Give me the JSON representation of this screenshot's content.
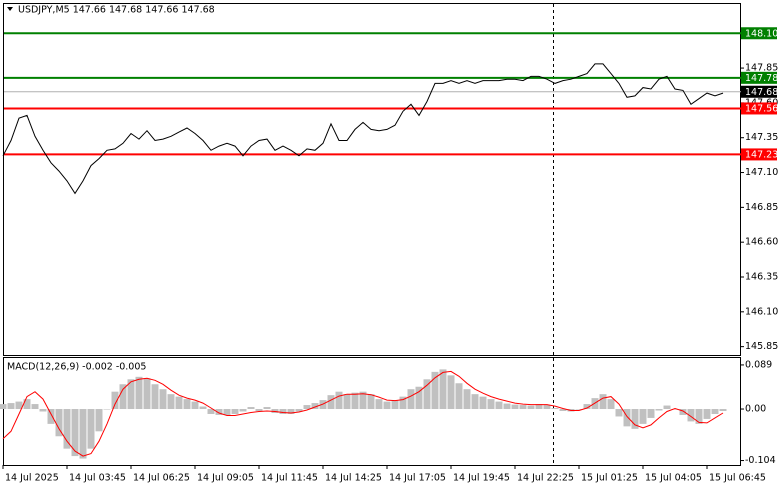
{
  "chart_data": [
    {
      "type": "line",
      "title": "USDJPY,M5  147.66 147.68 147.66 147.68",
      "categories": [
        "14 Jul 2025",
        null,
        null,
        null,
        null,
        null,
        null,
        null,
        "14 Jul 03:45",
        null,
        null,
        null,
        null,
        null,
        null,
        null,
        "14 Jul 06:25",
        null,
        null,
        null,
        null,
        null,
        null,
        null,
        "14 Jul 09:05",
        null,
        null,
        null,
        null,
        null,
        null,
        null,
        "14 Jul 11:45",
        null,
        null,
        null,
        null,
        null,
        null,
        null,
        "14 Jul 14:25",
        null,
        null,
        null,
        null,
        null,
        null,
        null,
        "14 Jul 17:05",
        null,
        null,
        null,
        null,
        null,
        null,
        null,
        "14 Jul 19:45",
        null,
        null,
        null,
        null,
        null,
        null,
        null,
        "14 Jul 22:25",
        null,
        null,
        null,
        null,
        null,
        null,
        null,
        "15 Jul 01:25",
        null,
        null,
        null,
        null,
        null,
        null,
        null,
        "15 Jul 04:05",
        null,
        null,
        null,
        null,
        null,
        null,
        null,
        "15 Jul 06:45",
        null,
        null
      ],
      "series": [
        {
          "color": "#000000",
          "values": [
            147.22,
            147.33,
            147.49,
            147.51,
            147.36,
            147.26,
            147.17,
            147.11,
            147.04,
            146.95,
            147.04,
            147.15,
            147.2,
            147.26,
            147.27,
            147.31,
            147.38,
            147.34,
            147.4,
            147.33,
            147.34,
            147.36,
            147.39,
            147.42,
            147.38,
            147.33,
            147.26,
            147.29,
            147.31,
            147.29,
            147.22,
            147.29,
            147.33,
            147.34,
            147.26,
            147.29,
            147.26,
            147.22,
            147.27,
            147.26,
            147.31,
            147.45,
            147.33,
            147.33,
            147.41,
            147.46,
            147.41,
            147.4,
            147.41,
            147.44,
            147.54,
            147.59,
            147.51,
            147.61,
            147.74,
            147.74,
            147.76,
            147.74,
            147.76,
            147.74,
            147.76,
            147.76,
            147.76,
            147.77,
            147.77,
            147.76,
            147.79,
            147.79,
            147.77,
            147.74,
            147.76,
            147.77,
            147.79,
            147.81,
            147.88,
            147.88,
            147.81,
            147.74,
            147.64,
            147.65,
            147.71,
            147.7,
            147.77,
            147.79,
            147.7,
            147.69,
            147.59,
            147.63,
            147.67,
            147.65,
            147.67
          ]
        }
      ],
      "ylim": [
        145.79,
        148.31
      ],
      "yticks": [
        145.85,
        {
          "value": 146.1,
          "label": "146.10"
        },
        146.35,
        {
          "value": 146.6,
          "label": "146.60"
        },
        146.85,
        {
          "value": 147.1,
          "label": "147.10"
        },
        147.35,
        {
          "value": 147.6,
          "label": "147.60"
        },
        147.85
      ],
      "levels": [
        {
          "value": 148.1,
          "label": "148.10",
          "color": "#008000"
        },
        {
          "value": 147.78,
          "label": "147.78",
          "color": "#008000"
        },
        {
          "value": 147.56,
          "label": "147.56",
          "color": "#ff0000"
        },
        {
          "value": 147.23,
          "label": "147.23",
          "color": "#ff0000"
        }
      ],
      "last": {
        "value": 147.68,
        "label": "147.68"
      }
    },
    {
      "type": "macd",
      "title": "MACD(12,26,9) -0.002 -0.005",
      "series": [
        {
          "type": "bar",
          "color": "#c0c0c0",
          "values": [
            0.01,
            0.012,
            0.015,
            0.02,
            0.01,
            -0.005,
            -0.03,
            -0.055,
            -0.08,
            -0.095,
            -0.1,
            -0.08,
            -0.045,
            0.0,
            0.035,
            0.05,
            0.06,
            0.065,
            0.062,
            0.05,
            0.04,
            0.03,
            0.025,
            0.02,
            0.015,
            0.005,
            -0.01,
            -0.012,
            -0.012,
            -0.01,
            -0.005,
            0.004,
            -0.004,
            0.004,
            -0.008,
            -0.01,
            -0.01,
            -0.005,
            0.008,
            0.012,
            0.018,
            0.028,
            0.035,
            0.03,
            0.033,
            0.035,
            0.03,
            0.02,
            0.015,
            0.018,
            0.025,
            0.04,
            0.045,
            0.06,
            0.075,
            0.08,
            0.068,
            0.052,
            0.04,
            0.03,
            0.025,
            0.02,
            0.015,
            0.011,
            0.009,
            0.008,
            0.007,
            0.01,
            0.008,
            0.002,
            -0.004,
            -0.005,
            0.0,
            0.01,
            0.022,
            0.03,
            0.02,
            -0.015,
            -0.035,
            -0.04,
            -0.03,
            -0.018,
            -0.003,
            0.007,
            0.0,
            -0.012,
            -0.025,
            -0.03,
            -0.02,
            -0.01,
            -0.004
          ]
        },
        {
          "type": "line",
          "color": "#ff0000",
          "values": [
            -0.06,
            -0.045,
            -0.01,
            0.025,
            0.035,
            0.02,
            -0.01,
            -0.04,
            -0.065,
            -0.085,
            -0.095,
            -0.09,
            -0.065,
            -0.03,
            0.01,
            0.04,
            0.055,
            0.06,
            0.062,
            0.058,
            0.05,
            0.038,
            0.028,
            0.022,
            0.018,
            0.012,
            0.002,
            -0.008,
            -0.013,
            -0.013,
            -0.01,
            -0.007,
            -0.005,
            -0.004,
            -0.005,
            -0.007,
            -0.008,
            -0.006,
            -0.002,
            0.004,
            0.01,
            0.018,
            0.026,
            0.03,
            0.03,
            0.031,
            0.029,
            0.024,
            0.018,
            0.017,
            0.019,
            0.026,
            0.035,
            0.048,
            0.063,
            0.074,
            0.076,
            0.066,
            0.052,
            0.04,
            0.032,
            0.025,
            0.02,
            0.016,
            0.012,
            0.01,
            0.009,
            0.009,
            0.009,
            0.006,
            0.001,
            -0.003,
            -0.003,
            0.002,
            0.012,
            0.022,
            0.025,
            0.01,
            -0.015,
            -0.032,
            -0.038,
            -0.032,
            -0.018,
            -0.005,
            0.001,
            -0.004,
            -0.015,
            -0.027,
            -0.028,
            -0.018,
            -0.008
          ]
        }
      ],
      "ylim": [
        -0.113,
        0.103
      ],
      "yticks": [
        0.089,
        {
          "value": 0,
          "label": "0.00"
        },
        -0.104
      ]
    }
  ]
}
